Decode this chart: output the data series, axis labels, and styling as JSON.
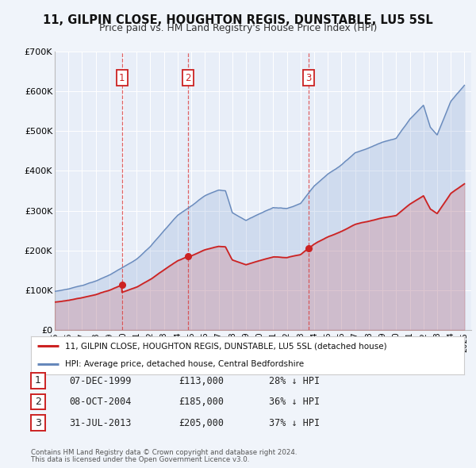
{
  "title": "11, GILPIN CLOSE, HOUGHTON REGIS, DUNSTABLE, LU5 5SL",
  "subtitle": "Price paid vs. HM Land Registry's House Price Index (HPI)",
  "background_color": "#f0f4fa",
  "plot_bg_color": "#e8eef8",
  "red_line_label": "11, GILPIN CLOSE, HOUGHTON REGIS, DUNSTABLE, LU5 5SL (detached house)",
  "blue_line_label": "HPI: Average price, detached house, Central Bedfordshire",
  "transactions": [
    {
      "num": 1,
      "date": "07-DEC-1999",
      "price": 113000,
      "pct": "28%",
      "x": 1999.92
    },
    {
      "num": 2,
      "date": "08-OCT-2004",
      "price": 185000,
      "pct": "36%",
      "x": 2004.77
    },
    {
      "num": 3,
      "date": "31-JUL-2013",
      "price": 205000,
      "pct": "37%",
      "x": 2013.58
    }
  ],
  "footnote1": "Contains HM Land Registry data © Crown copyright and database right 2024.",
  "footnote2": "This data is licensed under the Open Government Licence v3.0.",
  "yticks": [
    0,
    100000,
    200000,
    300000,
    400000,
    500000,
    600000,
    700000
  ],
  "ytick_labels": [
    "£0",
    "£100K",
    "£200K",
    "£300K",
    "£400K",
    "£500K",
    "£600K",
    "£700K"
  ],
  "xlim": [
    1995,
    2025.5
  ],
  "ylim": [
    0,
    700000
  ],
  "blue_kx": [
    1995.0,
    1996.0,
    1997.0,
    1998.0,
    1999.0,
    2000.0,
    2001.0,
    2002.0,
    2003.0,
    2004.0,
    2005.0,
    2006.0,
    2007.0,
    2007.5,
    2008.0,
    2009.0,
    2010.0,
    2011.0,
    2012.0,
    2013.0,
    2014.0,
    2015.0,
    2016.0,
    2017.0,
    2018.0,
    2019.0,
    2020.0,
    2021.0,
    2022.0,
    2022.5,
    2023.0,
    2024.0,
    2025.0
  ],
  "blue_ky": [
    97000,
    103000,
    112000,
    123000,
    138000,
    158000,
    178000,
    210000,
    250000,
    288000,
    312000,
    338000,
    352000,
    350000,
    295000,
    275000,
    292000,
    308000,
    305000,
    318000,
    362000,
    392000,
    415000,
    445000,
    458000,
    472000,
    482000,
    530000,
    565000,
    510000,
    490000,
    575000,
    615000
  ]
}
